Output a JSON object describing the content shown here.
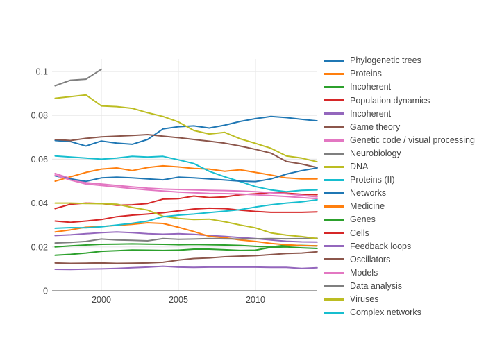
{
  "figure": {
    "title": "",
    "background": "#ffffff"
  },
  "colors": {
    "tick_label": "#444444",
    "grid": "#e8e8e8",
    "zeroline": "#888888",
    "legend_text": "#444444"
  },
  "chart_data": {
    "type": "line",
    "title": "",
    "xlabel": "",
    "ylabel": "",
    "grid": true,
    "legend_position": "right",
    "xlim": [
      1996.8,
      2014.3
    ],
    "ylim": [
      0,
      0.1057
    ],
    "x_ticks": [
      2000,
      2005,
      2010
    ],
    "x_tick_labels": [
      "2000",
      "2005",
      "2010"
    ],
    "y_ticks": [
      0,
      0.02,
      0.04,
      0.06,
      0.08,
      0.1
    ],
    "y_tick_labels": [
      "0",
      "0.02",
      "0.04",
      "0.06",
      "0.08",
      "0.1"
    ],
    "x": [
      1997,
      1998,
      1999,
      2000,
      2001,
      2002,
      2003,
      2004,
      2005,
      2006,
      2007,
      2008,
      2009,
      2010,
      2011,
      2012,
      2013,
      2014
    ],
    "series": [
      {
        "name": "Phylogenetic trees",
        "color": "#1f77b4",
        "values": [
          0.0685,
          0.068,
          0.066,
          0.0683,
          0.0673,
          0.0668,
          0.069,
          0.0738,
          0.0748,
          0.0752,
          0.0742,
          0.0755,
          0.0772,
          0.0785,
          0.0795,
          0.079,
          0.0782,
          0.0775
        ]
      },
      {
        "name": "Proteins",
        "color": "#ff7f0e",
        "values": [
          0.05,
          0.052,
          0.054,
          0.0555,
          0.056,
          0.0548,
          0.0562,
          0.057,
          0.0565,
          0.0558,
          0.0555,
          0.0545,
          0.0552,
          0.054,
          0.0528,
          0.0515,
          0.051,
          0.051
        ]
      },
      {
        "name": "Incoherent",
        "color": "#2ca02c",
        "values": [
          0.02,
          0.0205,
          0.0209,
          0.0212,
          0.0213,
          0.0214,
          0.0213,
          0.0212,
          0.021,
          0.0211,
          0.021,
          0.0209,
          0.0207,
          0.0203,
          0.02,
          0.0208,
          0.0207,
          0.0205
        ]
      },
      {
        "name": "Population dynamics",
        "color": "#d62728",
        "values": [
          0.0375,
          0.0395,
          0.04,
          0.0398,
          0.039,
          0.0392,
          0.0398,
          0.0418,
          0.042,
          0.0432,
          0.0425,
          0.0428,
          0.0438,
          0.0442,
          0.0448,
          0.0445,
          0.044,
          0.0438
        ]
      },
      {
        "name": "Incoherent",
        "color": "#9467bd",
        "values": [
          0.0252,
          0.0255,
          0.026,
          0.0265,
          0.0268,
          0.0265,
          0.026,
          0.0258,
          0.026,
          0.0257,
          0.0252,
          0.0248,
          0.0243,
          0.0238,
          0.0232,
          0.0226,
          0.0223,
          0.0222
        ]
      },
      {
        "name": "Game theory",
        "color": "#8c564b",
        "values": [
          0.069,
          0.0685,
          0.0695,
          0.0702,
          0.0705,
          0.0708,
          0.0712,
          0.0705,
          0.0698,
          0.069,
          0.0682,
          0.0673,
          0.066,
          0.0645,
          0.0628,
          0.059,
          0.0578,
          0.0562
        ]
      },
      {
        "name": "Genetic code / visual processing",
        "color": "#e377c2",
        "values": [
          0.0535,
          0.0512,
          0.0493,
          0.0487,
          0.048,
          0.0474,
          0.0468,
          0.0464,
          0.0462,
          0.046,
          0.0458,
          0.0457,
          0.0455,
          0.0452,
          0.0447,
          0.0442,
          0.0435,
          0.0428
        ]
      },
      {
        "name": "Neurobiology",
        "color": "#7f7f7f",
        "values": [
          0.0935,
          0.096,
          0.0965,
          0.101,
          null,
          null,
          null,
          null,
          null,
          null,
          null,
          null,
          null,
          null,
          null,
          null,
          null,
          null
        ],
        "note": "series clipped at top of y-range after 2000"
      },
      {
        "name": "DNA",
        "color": "#bcbd22",
        "values": [
          0.0878,
          0.0885,
          0.0893,
          0.0843,
          0.084,
          0.0832,
          0.0812,
          0.0795,
          0.077,
          0.0731,
          0.0715,
          0.0722,
          0.0693,
          0.0672,
          0.065,
          0.0615,
          0.0605,
          0.0588
        ]
      },
      {
        "name": "Proteins (II)",
        "color": "#17becf",
        "values": [
          0.0615,
          0.061,
          0.0605,
          0.06,
          0.0605,
          0.0613,
          0.061,
          0.0613,
          0.0597,
          0.058,
          0.0545,
          0.052,
          0.0498,
          0.0475,
          0.046,
          0.0452,
          0.0458,
          0.046
        ]
      },
      {
        "name": "Networks",
        "color": "#1f77b4",
        "values": [
          0.0524,
          0.051,
          0.0499,
          0.0515,
          0.0518,
          0.0515,
          0.051,
          0.0506,
          0.0518,
          0.0515,
          0.051,
          0.0505,
          0.05,
          0.0498,
          0.051,
          0.0532,
          0.0548,
          0.056
        ]
      },
      {
        "name": "Medicine",
        "color": "#ff7f0e",
        "values": [
          0.0268,
          0.0278,
          0.029,
          0.0293,
          0.0298,
          0.0303,
          0.031,
          0.0307,
          0.029,
          0.027,
          0.0248,
          0.0242,
          0.0232,
          0.0225,
          0.0216,
          0.021,
          0.0206,
          0.0205
        ]
      },
      {
        "name": "Genes",
        "color": "#2ca02c",
        "values": [
          0.0162,
          0.0166,
          0.0172,
          0.018,
          0.0183,
          0.0186,
          0.0185,
          0.0184,
          0.0185,
          0.019,
          0.019,
          0.0187,
          0.0184,
          0.0185,
          0.0198,
          0.02,
          0.0196,
          0.0193
        ]
      },
      {
        "name": "Cells",
        "color": "#d62728",
        "values": [
          0.0318,
          0.0312,
          0.0318,
          0.0325,
          0.0338,
          0.0345,
          0.035,
          0.0356,
          0.0365,
          0.0373,
          0.0377,
          0.0375,
          0.0368,
          0.0362,
          0.0358,
          0.0358,
          0.0358,
          0.036
        ]
      },
      {
        "name": "Feedback loops",
        "color": "#9467bd",
        "values": [
          0.0098,
          0.0097,
          0.0099,
          0.01,
          0.0102,
          0.0105,
          0.0108,
          0.0112,
          0.0108,
          0.0107,
          0.0108,
          0.0108,
          0.0108,
          0.0108,
          0.0107,
          0.0107,
          0.0102,
          0.0105
        ]
      },
      {
        "name": "Oscillators",
        "color": "#8c564b",
        "values": [
          0.0127,
          0.0125,
          0.0126,
          0.0127,
          0.0125,
          0.0126,
          0.0127,
          0.013,
          0.014,
          0.0147,
          0.015,
          0.0155,
          0.0158,
          0.016,
          0.0165,
          0.017,
          0.0172,
          0.0178
        ]
      },
      {
        "name": "Models",
        "color": "#e377c2",
        "values": [
          0.0528,
          0.0505,
          0.0487,
          0.048,
          0.0473,
          0.0466,
          0.046,
          0.0455,
          0.045,
          0.0447,
          0.0444,
          0.0443,
          0.0441,
          0.0438,
          0.0434,
          0.043,
          0.0425,
          0.042
        ]
      },
      {
        "name": "Data analysis",
        "color": "#7f7f7f",
        "values": [
          0.0218,
          0.0221,
          0.0225,
          0.0236,
          0.0232,
          0.023,
          0.0228,
          0.0238,
          0.0235,
          0.0236,
          0.0238,
          0.0237,
          0.0236,
          0.0237,
          0.0238,
          0.0237,
          0.0238,
          0.024
        ]
      },
      {
        "name": "Viruses",
        "color": "#bcbd22",
        "values": [
          0.04,
          0.04,
          0.0398,
          0.0397,
          0.0395,
          0.038,
          0.0368,
          0.034,
          0.033,
          0.0325,
          0.0327,
          0.0315,
          0.03,
          0.0287,
          0.0264,
          0.0254,
          0.0247,
          0.0238
        ]
      },
      {
        "name": "Complex networks",
        "color": "#17becf",
        "values": [
          0.0285,
          0.0288,
          0.0287,
          0.0292,
          0.03,
          0.0308,
          0.0318,
          0.0338,
          0.0345,
          0.035,
          0.0357,
          0.0363,
          0.037,
          0.0382,
          0.0392,
          0.04,
          0.0406,
          0.0415
        ]
      }
    ]
  }
}
